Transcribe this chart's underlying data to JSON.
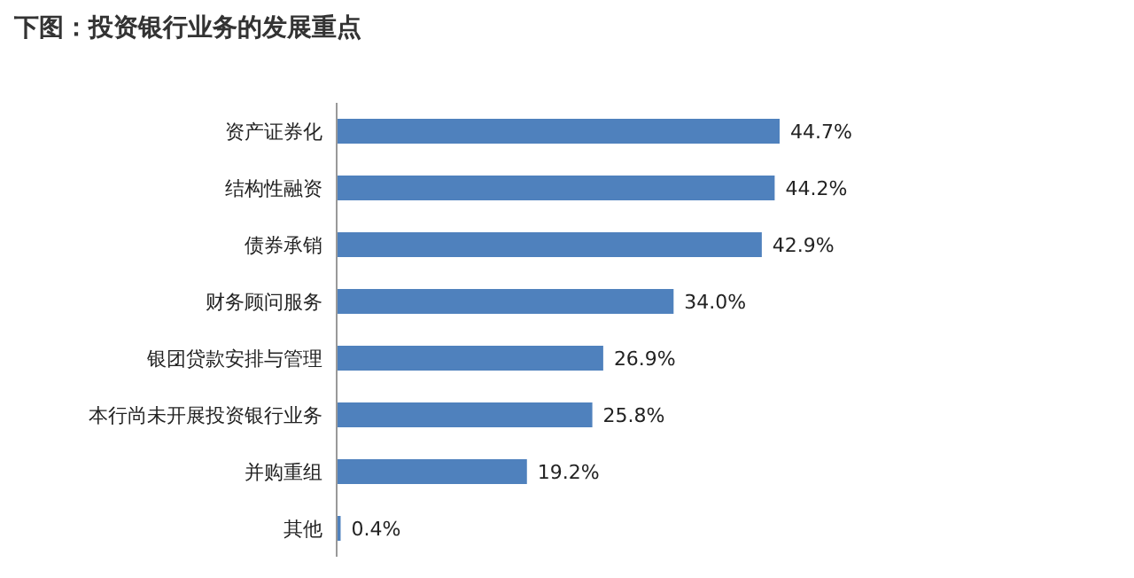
{
  "chart_data": {
    "type": "bar",
    "orientation": "horizontal",
    "title": "下图：投资银行业务的发展重点",
    "categories": [
      "资产证券化",
      "结构性融资",
      "债券承销",
      "财务顾问服务",
      "银团贷款安排与管理",
      "本行尚未开展投资银行业务",
      "并购重组",
      "其他"
    ],
    "values": [
      44.7,
      44.2,
      42.9,
      34.0,
      26.9,
      25.8,
      19.2,
      0.4
    ],
    "value_labels": [
      "44.7%",
      "44.2%",
      "42.9%",
      "34.0%",
      "26.9%",
      "25.8%",
      "19.2%",
      "0.4%"
    ],
    "color": "#4f81bd"
  }
}
